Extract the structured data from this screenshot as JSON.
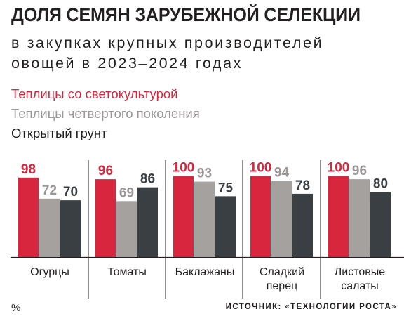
{
  "title": "ДОЛЯ СЕМЯН ЗАРУБЕЖНОЙ СЕЛЕКЦИИ",
  "subtitle_line1": "в закупках крупных производителей",
  "subtitle_line2": "овощей в 2023–2024 годах",
  "unit": "%",
  "source": "ИСТОЧНИК: «ТЕХНОЛОГИИ РОСТА»",
  "colors": {
    "red": "#d7263d",
    "gray": "#a5a19f",
    "dark": "#3a3f44",
    "gray_label": "#9b9796"
  },
  "chart_data": {
    "type": "bar",
    "categories": [
      "Огурцы",
      "Томаты",
      "Баклажаны",
      "Сладкий перец",
      "Листовые салаты"
    ],
    "category_lines": [
      [
        "Огурцы"
      ],
      [
        "Томаты"
      ],
      [
        "Баклажаны"
      ],
      [
        "Сладкий",
        "перец"
      ],
      [
        "Листовые",
        "салаты"
      ]
    ],
    "series": [
      {
        "name": "Теплицы со светокультурой",
        "values": [
          98,
          96,
          100,
          100,
          100
        ],
        "color": "#d7263d"
      },
      {
        "name": "Теплицы четвертого поколения",
        "values": [
          72,
          69,
          93,
          94,
          96
        ],
        "color": "#a5a19f"
      },
      {
        "name": "Открытый грунт",
        "values": [
          70,
          86,
          75,
          78,
          80
        ],
        "color": "#3a3f44"
      }
    ],
    "ylim": [
      0,
      100
    ],
    "legend_position": "top-left",
    "grid": false,
    "data_labels": true
  }
}
